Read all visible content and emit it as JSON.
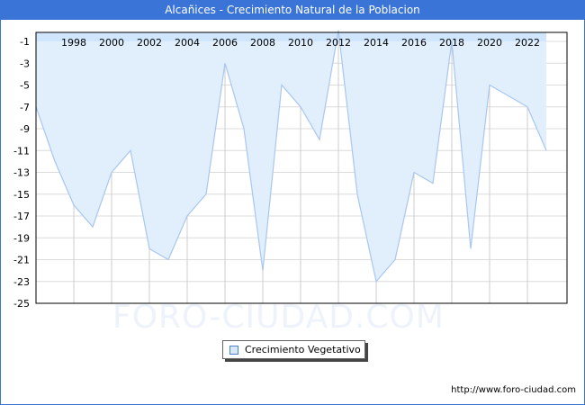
{
  "header": {
    "title": "Alcañices - Crecimiento Natural de la Poblacion"
  },
  "legend": {
    "label": "Crecimiento Vegetativo"
  },
  "footer": {
    "url": "http://www.foro-ciudad.com"
  },
  "watermark": "FORO-CIUDAD.COM",
  "colors": {
    "title_bar": "#3a74d6",
    "fill": "#e1effd",
    "line": "#a8c6ef",
    "top_band": "#c9e3fb"
  },
  "chart_data": {
    "type": "area",
    "title": "Alcañices - Crecimiento Natural de la Poblacion",
    "xlabel": "",
    "ylabel": "",
    "x": [
      1996,
      1997,
      1998,
      1999,
      2000,
      2001,
      2002,
      2003,
      2004,
      2005,
      2006,
      2007,
      2008,
      2009,
      2010,
      2011,
      2012,
      2013,
      2014,
      2015,
      2016,
      2017,
      2018,
      2019,
      2020,
      2021,
      2022,
      2023
    ],
    "series": [
      {
        "name": "Crecimiento Vegetativo",
        "values": [
          -7,
          -12,
          -16,
          -18,
          -13,
          -11,
          -20,
          -21,
          -17,
          -15,
          -3,
          -9,
          -22,
          -5,
          -7,
          -10,
          0,
          -15,
          -23,
          -21,
          -13,
          -14,
          -1,
          -20,
          -5,
          -6,
          -7,
          -11
        ]
      }
    ],
    "x_ticks": [
      "1998",
      "2000",
      "2002",
      "2004",
      "2006",
      "2008",
      "2010",
      "2012",
      "2014",
      "2016",
      "2018",
      "2020",
      "2022"
    ],
    "y_ticks": [
      "-1",
      "-3",
      "-5",
      "-7",
      "-9",
      "-11",
      "-13",
      "-15",
      "-17",
      "-19",
      "-21",
      "-23",
      "-25"
    ],
    "ylim": [
      -25,
      0
    ],
    "xlim": [
      1996,
      2024
    ],
    "grid": true,
    "legend_position": "bottom-center"
  }
}
